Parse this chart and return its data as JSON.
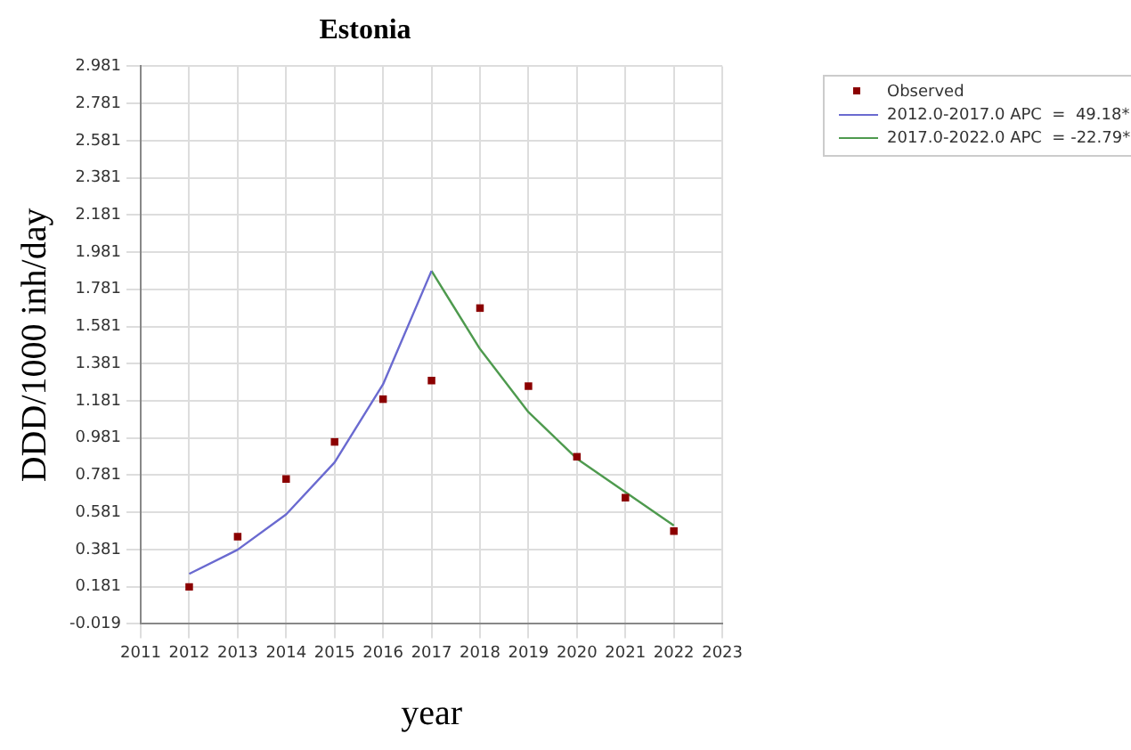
{
  "chart_data": {
    "type": "scatter",
    "title": "Estonia",
    "xlabel": "year",
    "ylabel": "DDD/1000 inh/day",
    "x": [
      2012,
      2013,
      2014,
      2015,
      2016,
      2017,
      2018,
      2019,
      2020,
      2021,
      2022
    ],
    "series": [
      {
        "name": "Observed",
        "type": "scatter",
        "marker": "square",
        "color": "#8b0000",
        "values": [
          0.18,
          0.45,
          0.76,
          0.96,
          1.19,
          1.29,
          1.68,
          1.26,
          0.88,
          0.66,
          0.48
        ]
      },
      {
        "name": "2012.0-2017.0 APC  =  49.18*",
        "type": "line",
        "marker": "none",
        "color": "#6a6ad0",
        "x": [
          2012,
          2013,
          2014,
          2015,
          2016,
          2017
        ],
        "values": [
          0.25,
          0.38,
          0.57,
          0.85,
          1.27,
          1.88
        ]
      },
      {
        "name": "2017.0-2022.0 APC  = -22.79*",
        "type": "line",
        "marker": "none",
        "color": "#4e9a4e",
        "x": [
          2017,
          2018,
          2019,
          2020,
          2021,
          2022
        ],
        "values": [
          1.88,
          1.46,
          1.12,
          0.87,
          0.69,
          0.51
        ]
      }
    ],
    "xlim": [
      2011,
      2023
    ],
    "xticks": [
      2011,
      2012,
      2013,
      2014,
      2015,
      2016,
      2017,
      2018,
      2019,
      2020,
      2021,
      2022,
      2023
    ],
    "ylim": [
      -0.019,
      2.981
    ],
    "yticks": [
      -0.019,
      0.181,
      0.381,
      0.581,
      0.781,
      0.981,
      1.181,
      1.381,
      1.581,
      1.781,
      1.981,
      2.181,
      2.381,
      2.581,
      2.781,
      2.981
    ],
    "grid": true,
    "legend": "top right"
  }
}
